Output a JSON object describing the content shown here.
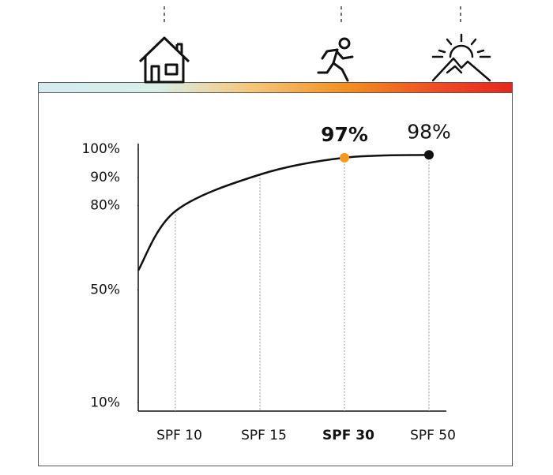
{
  "chart_data": {
    "type": "line",
    "categories": [
      null,
      "SPF 10",
      "SPF 15",
      "SPF 30",
      "SPF 50"
    ],
    "values": [
      57,
      78,
      91,
      97,
      98
    ],
    "value_labels": [
      null,
      null,
      null,
      "97%",
      "98%"
    ],
    "color": "#111111",
    "highlight": {
      "index": 3,
      "color": "#f39a1e"
    },
    "ylim": [
      7,
      102
    ],
    "yticks": [
      {
        "value": 10,
        "label": "10%"
      },
      {
        "value": 50,
        "label": "50%"
      },
      {
        "value": 80,
        "label": "80%"
      },
      {
        "value": 90,
        "label": "90%"
      },
      {
        "value": 100,
        "label": "100%"
      }
    ]
  }
}
